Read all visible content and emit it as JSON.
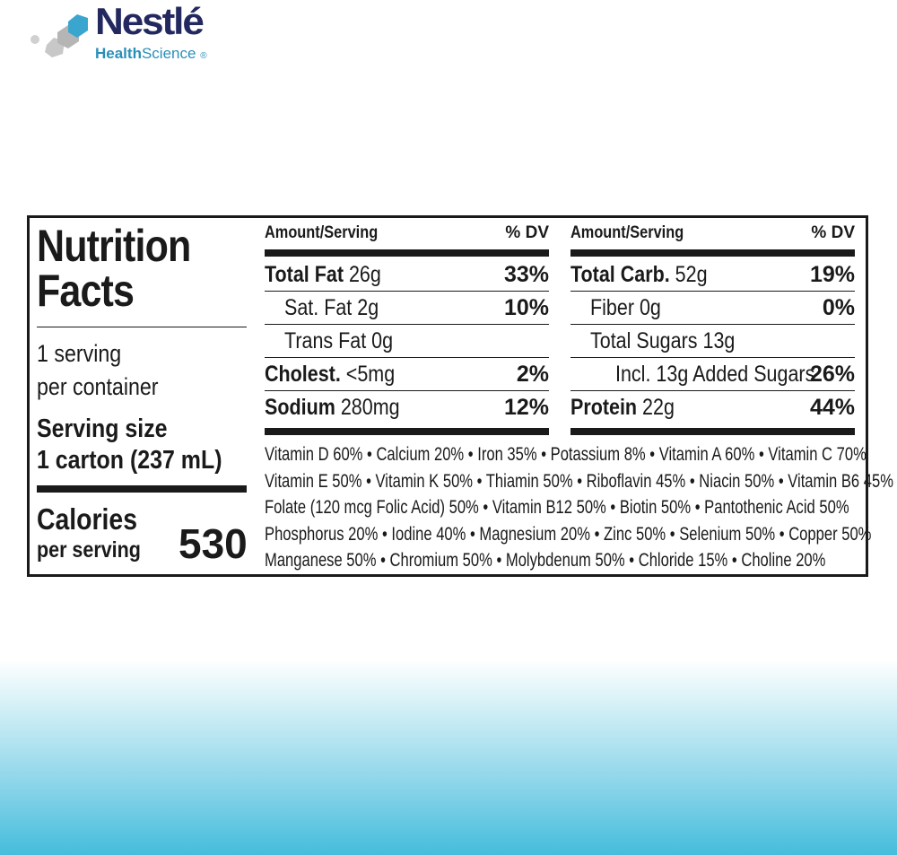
{
  "brand": {
    "name": "Nestlé",
    "sub_bold": "Health",
    "sub": "Science",
    "reg": "®",
    "colors": {
      "navy": "#23285f",
      "blue": "#2a8fb8"
    }
  },
  "label": {
    "title_line1": "Nutrition",
    "title_line2": "Facts",
    "servings_line1": "1 serving",
    "servings_line2": "per container",
    "serving_size_label": "Serving size",
    "serving_size_value": "1 carton (237 mL)",
    "calories_label": "Calories",
    "calories_sub": "per serving",
    "calories_value": "530",
    "left_col": {
      "header": "Amount/Serving",
      "dv": "% DV",
      "rows": [
        {
          "bold": "Total Fat",
          "amount": "26g",
          "dv": "33%"
        },
        {
          "bold": "",
          "amount": "Sat. Fat 2g",
          "dv": "10%"
        },
        {
          "bold": "",
          "amount": "Trans Fat 0g",
          "dv": ""
        },
        {
          "bold": "Cholest.",
          "amount": "<5mg",
          "dv": "2%"
        },
        {
          "bold": "Sodium",
          "amount": "280mg",
          "dv": "12%"
        }
      ]
    },
    "right_col": {
      "header": "Amount/Serving",
      "dv": "% DV",
      "rows": [
        {
          "bold": "Total Carb.",
          "amount": "52g",
          "dv": "19%"
        },
        {
          "bold": "",
          "amount": "Fiber 0g",
          "dv": "0%"
        },
        {
          "bold": "",
          "amount": "Total Sugars 13g",
          "dv": ""
        },
        {
          "bold": "",
          "amount": "Incl. 13g Added Sugars",
          "dv": "26%"
        },
        {
          "bold": "Protein",
          "amount": "22g",
          "dv": "44%"
        }
      ]
    },
    "vitamins": [
      "Vitamin D 60% • Calcium 20% • Iron 35% • Potassium 8% • Vitamin A 60% • Vitamin C 70%",
      "Vitamin E 50% • Vitamin K 50% • Thiamin 50% • Riboflavin 45% • Niacin 50% • Vitamin B6 45%",
      "Folate (120 mcg Folic Acid) 50% • Vitamin B12 50% • Biotin 50% • Pantothenic Acid 50%",
      "Phosphorus 20% • Iodine 40% • Magnesium 20% • Zinc 50% • Selenium 50% • Copper 50%",
      "Manganese 50% • Chromium 50% • Molybdenum 50% • Chloride 15% • Choline 20%"
    ]
  }
}
